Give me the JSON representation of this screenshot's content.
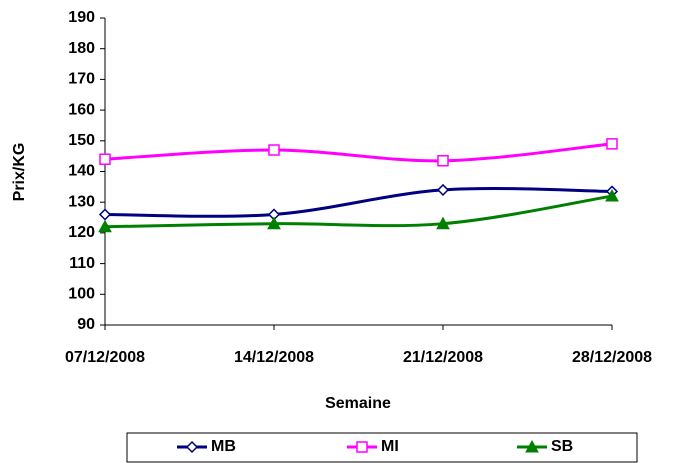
{
  "chart_data": {
    "type": "line",
    "x_label": "Semaine",
    "y_label": "Prix/KG",
    "categories": [
      "07/12/2008",
      "14/12/2008",
      "21/12/2008",
      "28/12/2008"
    ],
    "series": [
      {
        "name": "MB",
        "color": "#000080",
        "marker": "diamond",
        "values": [
          126,
          126,
          134,
          133.5
        ]
      },
      {
        "name": "MI",
        "color": "#ff00ff",
        "marker": "square",
        "values": [
          144,
          147,
          143.5,
          149
        ]
      },
      {
        "name": "SB",
        "color": "#008000",
        "marker": "triangle",
        "values": [
          122,
          123,
          123,
          132
        ]
      }
    ],
    "ylim": [
      90,
      190
    ],
    "yticks": [
      90,
      100,
      110,
      120,
      130,
      140,
      150,
      160,
      170,
      180,
      190
    ],
    "grid": false,
    "smooth": true,
    "legend": "bottom"
  }
}
